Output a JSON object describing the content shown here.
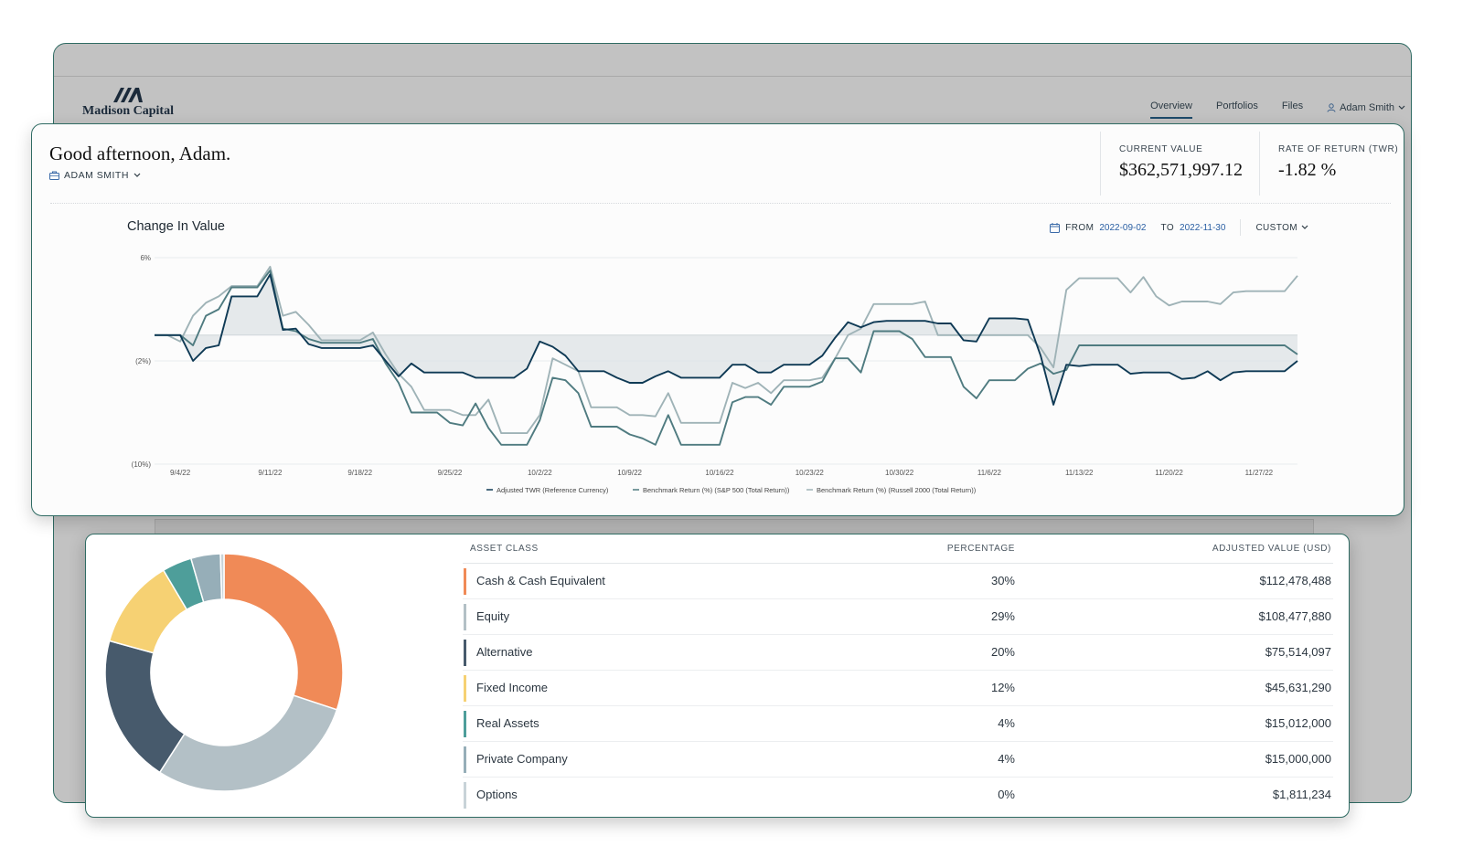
{
  "app": {
    "brand": "Madison Capital",
    "nav": [
      {
        "label": "Overview",
        "active": true
      },
      {
        "label": "Portfolios",
        "active": false
      },
      {
        "label": "Files",
        "active": false
      }
    ],
    "user": {
      "name": "Adam Smith",
      "icon": "user-icon"
    }
  },
  "header": {
    "greeting": "Good afternoon, Adam.",
    "account": "ADAM SMITH",
    "metrics": [
      {
        "label": "CURRENT VALUE",
        "value": "$362,571,997.12"
      },
      {
        "label": "RATE OF RETURN (TWR)",
        "value": "-1.82 %"
      }
    ]
  },
  "filters": {
    "from_label": "FROM",
    "from_date": "2022-09-02",
    "to_label": "TO",
    "to_date": "2022-11-30",
    "period": "CUSTOM"
  },
  "chart_data": {
    "type": "line",
    "title": "Change In Value",
    "y_ticks": [
      {
        "value": 6,
        "label": "6%"
      },
      {
        "value": -2,
        "label": "(2%)"
      },
      {
        "value": -10,
        "label": "(10%)"
      }
    ],
    "ylim": [
      -10,
      6
    ],
    "xlim": [
      0,
      89
    ],
    "x_ticks": [
      {
        "x": 2,
        "label": "9/4/22"
      },
      {
        "x": 9,
        "label": "9/11/22"
      },
      {
        "x": 16,
        "label": "9/18/22"
      },
      {
        "x": 23,
        "label": "9/25/22"
      },
      {
        "x": 30,
        "label": "10/2/22"
      },
      {
        "x": 37,
        "label": "10/9/22"
      },
      {
        "x": 44,
        "label": "10/16/22"
      },
      {
        "x": 51,
        "label": "10/23/22"
      },
      {
        "x": 58,
        "label": "10/30/22"
      },
      {
        "x": 65,
        "label": "11/6/22"
      },
      {
        "x": 72,
        "label": "11/13/22"
      },
      {
        "x": 79,
        "label": "11/20/22"
      },
      {
        "x": 86,
        "label": "11/27/22"
      }
    ],
    "reference_line": 0,
    "legend_position": "bottom",
    "series": [
      {
        "name": "Adjusted TWR (Reference Currency)",
        "color": "#0f3a55",
        "fill_to_zero": true,
        "points": [
          [
            0,
            0
          ],
          [
            1,
            0
          ],
          [
            2,
            0
          ],
          [
            3,
            -2
          ],
          [
            4,
            -1
          ],
          [
            5,
            -0.8
          ],
          [
            6,
            3
          ],
          [
            7,
            3
          ],
          [
            8,
            3
          ],
          [
            9,
            4.7
          ],
          [
            10,
            0.4
          ],
          [
            11,
            0.5
          ],
          [
            12,
            -0.7
          ],
          [
            13,
            -1
          ],
          [
            14,
            -1
          ],
          [
            15,
            -1
          ],
          [
            16,
            -1
          ],
          [
            17,
            -0.8
          ],
          [
            18,
            -2
          ],
          [
            19,
            -3.2
          ],
          [
            20,
            -2.2
          ],
          [
            21,
            -2.9
          ],
          [
            22,
            -2.9
          ],
          [
            23,
            -2.9
          ],
          [
            24,
            -2.9
          ],
          [
            25,
            -3.3
          ],
          [
            26,
            -3.3
          ],
          [
            27,
            -3.3
          ],
          [
            28,
            -3.3
          ],
          [
            29,
            -2.6
          ],
          [
            30,
            -0.5
          ],
          [
            31,
            -0.9
          ],
          [
            32,
            -1.6
          ],
          [
            33,
            -2.8
          ],
          [
            34,
            -2.8
          ],
          [
            35,
            -2.8
          ],
          [
            36,
            -3.3
          ],
          [
            37,
            -3.7
          ],
          [
            38,
            -3.7
          ],
          [
            39,
            -3.2
          ],
          [
            40,
            -2.8
          ],
          [
            41,
            -3.3
          ],
          [
            42,
            -3.3
          ],
          [
            43,
            -3.3
          ],
          [
            44,
            -3.3
          ],
          [
            45,
            -2.3
          ],
          [
            46,
            -2.3
          ],
          [
            47,
            -2.9
          ],
          [
            48,
            -2.9
          ],
          [
            49,
            -2.3
          ],
          [
            50,
            -2.3
          ],
          [
            51,
            -2.3
          ],
          [
            52,
            -1.6
          ],
          [
            53,
            -0.2
          ],
          [
            54,
            1
          ],
          [
            55,
            0.6
          ],
          [
            56,
            1
          ],
          [
            57,
            1.1
          ],
          [
            58,
            1.1
          ],
          [
            59,
            1.1
          ],
          [
            60,
            1.1
          ],
          [
            61,
            0.9
          ],
          [
            62,
            0.9
          ],
          [
            63,
            -0.4
          ],
          [
            64,
            -0.5
          ],
          [
            65,
            1.3
          ],
          [
            66,
            1.3
          ],
          [
            67,
            1.3
          ],
          [
            68,
            1.2
          ],
          [
            69,
            -1.6
          ],
          [
            70,
            -5.4
          ],
          [
            71,
            -2.3
          ],
          [
            72,
            -2.4
          ],
          [
            73,
            -2.3
          ],
          [
            74,
            -2.3
          ],
          [
            75,
            -2.3
          ],
          [
            76,
            -3
          ],
          [
            77,
            -2.9
          ],
          [
            78,
            -2.9
          ],
          [
            79,
            -2.9
          ],
          [
            80,
            -3.4
          ],
          [
            81,
            -3.3
          ],
          [
            82,
            -2.8
          ],
          [
            83,
            -3.5
          ],
          [
            84,
            -2.9
          ],
          [
            85,
            -2.8
          ],
          [
            86,
            -2.8
          ],
          [
            87,
            -2.8
          ],
          [
            88,
            -2.8
          ],
          [
            89,
            -2
          ]
        ]
      },
      {
        "name": "Benchmark Return (%) (S&P 500 (Total Return))",
        "color": "#4f7b80",
        "fill_to_zero": false,
        "points": [
          [
            0,
            0
          ],
          [
            1,
            0
          ],
          [
            2,
            0
          ],
          [
            3,
            -0.8
          ],
          [
            4,
            1.5
          ],
          [
            5,
            2
          ],
          [
            6,
            3.7
          ],
          [
            7,
            3.7
          ],
          [
            8,
            3.7
          ],
          [
            9,
            5
          ],
          [
            10,
            0.5
          ],
          [
            11,
            0.3
          ],
          [
            12,
            -0.3
          ],
          [
            13,
            -0.6
          ],
          [
            14,
            -0.6
          ],
          [
            15,
            -0.6
          ],
          [
            16,
            -0.6
          ],
          [
            17,
            -0.3
          ],
          [
            18,
            -2.2
          ],
          [
            19,
            -3.7
          ],
          [
            20,
            -6
          ],
          [
            21,
            -6
          ],
          [
            22,
            -6
          ],
          [
            23,
            -6.8
          ],
          [
            24,
            -7
          ],
          [
            25,
            -5.3
          ],
          [
            26,
            -7.2
          ],
          [
            27,
            -8.5
          ],
          [
            28,
            -8.5
          ],
          [
            29,
            -8.5
          ],
          [
            30,
            -6.6
          ],
          [
            31,
            -3.3
          ],
          [
            32,
            -3.5
          ],
          [
            33,
            -4.5
          ],
          [
            34,
            -7.1
          ],
          [
            35,
            -7.1
          ],
          [
            36,
            -7.1
          ],
          [
            37,
            -7.7
          ],
          [
            38,
            -8
          ],
          [
            39,
            -8.5
          ],
          [
            40,
            -6.2
          ],
          [
            41,
            -8.5
          ],
          [
            42,
            -8.5
          ],
          [
            43,
            -8.5
          ],
          [
            44,
            -8.5
          ],
          [
            45,
            -5.2
          ],
          [
            46,
            -4.8
          ],
          [
            47,
            -4.8
          ],
          [
            48,
            -5.4
          ],
          [
            49,
            -4
          ],
          [
            50,
            -4
          ],
          [
            51,
            -4
          ],
          [
            52,
            -3.6
          ],
          [
            53,
            -1.8
          ],
          [
            54,
            -1.8
          ],
          [
            55,
            -2.9
          ],
          [
            56,
            0.3
          ],
          [
            57,
            0.3
          ],
          [
            58,
            0.3
          ],
          [
            59,
            -0.3
          ],
          [
            60,
            -1.7
          ],
          [
            61,
            -1.7
          ],
          [
            62,
            -1.7
          ],
          [
            63,
            -4
          ],
          [
            64,
            -4.9
          ],
          [
            65,
            -3.5
          ],
          [
            66,
            -3.5
          ],
          [
            67,
            -3.5
          ],
          [
            68,
            -2.6
          ],
          [
            69,
            -2.2
          ],
          [
            70,
            -3
          ],
          [
            71,
            -2.7
          ],
          [
            72,
            -0.8
          ],
          [
            73,
            -0.8
          ],
          [
            74,
            -0.8
          ],
          [
            75,
            -0.8
          ],
          [
            76,
            -0.8
          ],
          [
            77,
            -0.8
          ],
          [
            78,
            -0.8
          ],
          [
            79,
            -0.8
          ],
          [
            80,
            -0.8
          ],
          [
            81,
            -0.8
          ],
          [
            82,
            -0.8
          ],
          [
            83,
            -0.8
          ],
          [
            84,
            -0.8
          ],
          [
            85,
            -0.8
          ],
          [
            86,
            -0.8
          ],
          [
            87,
            -0.8
          ],
          [
            88,
            -0.8
          ],
          [
            89,
            -1.5
          ]
        ]
      },
      {
        "name": "Benchmark Return (%) (Russell 2000 (Total Return))",
        "color": "#9fb3b7",
        "fill_to_zero": false,
        "points": [
          [
            0,
            0
          ],
          [
            1,
            0
          ],
          [
            2,
            -0.5
          ],
          [
            3,
            1.5
          ],
          [
            4,
            2.5
          ],
          [
            5,
            3
          ],
          [
            6,
            3.8
          ],
          [
            7,
            3.8
          ],
          [
            8,
            3.8
          ],
          [
            9,
            5.3
          ],
          [
            10,
            1.5
          ],
          [
            11,
            1.8
          ],
          [
            12,
            0.8
          ],
          [
            13,
            -0.4
          ],
          [
            14,
            -0.4
          ],
          [
            15,
            -0.4
          ],
          [
            16,
            -0.4
          ],
          [
            17,
            0.2
          ],
          [
            18,
            -1.5
          ],
          [
            19,
            -3
          ],
          [
            20,
            -4
          ],
          [
            21,
            -5.8
          ],
          [
            22,
            -5.8
          ],
          [
            23,
            -5.8
          ],
          [
            24,
            -6.2
          ],
          [
            25,
            -6.2
          ],
          [
            26,
            -5
          ],
          [
            27,
            -7.6
          ],
          [
            28,
            -7.6
          ],
          [
            29,
            -7.6
          ],
          [
            30,
            -6.2
          ],
          [
            31,
            -1.8
          ],
          [
            32,
            -2.3
          ],
          [
            33,
            -2.8
          ],
          [
            34,
            -5.6
          ],
          [
            35,
            -5.6
          ],
          [
            36,
            -5.6
          ],
          [
            37,
            -6.2
          ],
          [
            38,
            -6.2
          ],
          [
            39,
            -6.3
          ],
          [
            40,
            -4.5
          ],
          [
            41,
            -6.8
          ],
          [
            42,
            -6.8
          ],
          [
            43,
            -6.8
          ],
          [
            44,
            -6.8
          ],
          [
            45,
            -3.7
          ],
          [
            46,
            -4.1
          ],
          [
            47,
            -3.7
          ],
          [
            48,
            -4.5
          ],
          [
            49,
            -3.5
          ],
          [
            50,
            -3.5
          ],
          [
            51,
            -3.5
          ],
          [
            52,
            -3.3
          ],
          [
            53,
            -1.8
          ],
          [
            54,
            0
          ],
          [
            55,
            0.5
          ],
          [
            56,
            2.4
          ],
          [
            57,
            2.4
          ],
          [
            58,
            2.4
          ],
          [
            59,
            2.4
          ],
          [
            60,
            2.6
          ],
          [
            61,
            0
          ],
          [
            62,
            0
          ],
          [
            63,
            0
          ],
          [
            64,
            0
          ],
          [
            65,
            0
          ],
          [
            66,
            0
          ],
          [
            67,
            0
          ],
          [
            68,
            0
          ],
          [
            69,
            -1
          ],
          [
            70,
            -2.5
          ],
          [
            71,
            3.5
          ],
          [
            72,
            4.4
          ],
          [
            73,
            4.4
          ],
          [
            74,
            4.4
          ],
          [
            75,
            4.4
          ],
          [
            76,
            3.3
          ],
          [
            77,
            4.5
          ],
          [
            78,
            3
          ],
          [
            79,
            2.3
          ],
          [
            80,
            2.6
          ],
          [
            81,
            2.6
          ],
          [
            82,
            2.6
          ],
          [
            83,
            2.4
          ],
          [
            84,
            3.3
          ],
          [
            85,
            3.4
          ],
          [
            86,
            3.4
          ],
          [
            87,
            3.4
          ],
          [
            88,
            3.4
          ],
          [
            89,
            4.6
          ]
        ]
      }
    ]
  },
  "allocation": {
    "columns": [
      "ASSET CLASS",
      "PERCENTAGE",
      "ADJUSTED VALUE (USD)"
    ],
    "rows": [
      {
        "asset": "Cash & Cash Equivalent",
        "percentage": "30%",
        "value": "$112,478,488",
        "share": 30.02,
        "color": "#f08a57"
      },
      {
        "asset": "Equity",
        "percentage": "29%",
        "value": "$108,477,880",
        "share": 28.95,
        "color": "#b3c0c6"
      },
      {
        "asset": "Alternative",
        "percentage": "20%",
        "value": "$75,514,097",
        "share": 20.15,
        "color": "#475a6c"
      },
      {
        "asset": "Fixed Income",
        "percentage": "12%",
        "value": "$45,631,290",
        "share": 12.18,
        "color": "#f6d173"
      },
      {
        "asset": "Real Assets",
        "percentage": "4%",
        "value": "$15,012,000",
        "share": 4.01,
        "color": "#4e9e9a"
      },
      {
        "asset": "Private Company",
        "percentage": "4%",
        "value": "$15,000,000",
        "share": 4.0,
        "color": "#96aeb8"
      },
      {
        "asset": "Options",
        "percentage": "0%",
        "value": "$1,811,234",
        "share": 0.48,
        "color": "#c8d3d8"
      }
    ]
  }
}
